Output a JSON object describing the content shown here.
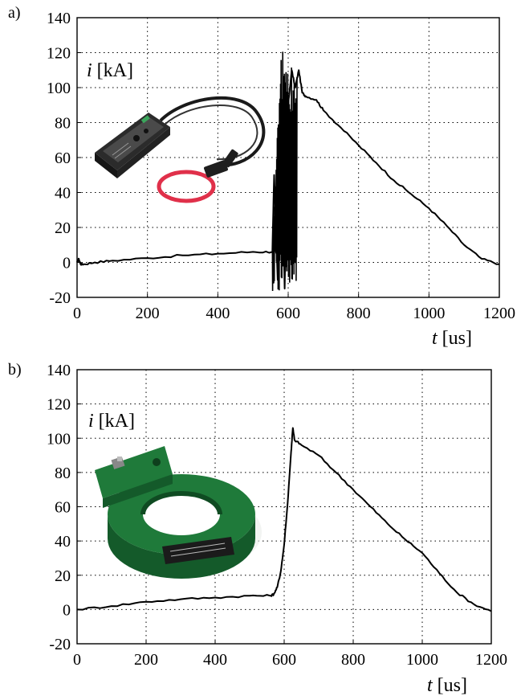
{
  "colors": {
    "trace": "#000000",
    "grid": "#000000",
    "rogowski_cable": "#e0304a",
    "rogowski_box": "#2b2b2b",
    "toroid_green": "#1f7a3a"
  },
  "icons": [
    "rogowski-coil-photo",
    "current-transformer-photo"
  ],
  "chart_data": [
    {
      "type": "line",
      "panel_label": "a)",
      "ylabel_var": "i",
      "ylabel_unit": "[kA]",
      "xlabel_var": "t",
      "xlabel_unit": "[us]",
      "xlim": [
        0,
        1200
      ],
      "ylim": [
        -20,
        140
      ],
      "xticks": [
        0,
        200,
        400,
        600,
        800,
        1000,
        1200
      ],
      "yticks": [
        -20,
        0,
        20,
        40,
        60,
        80,
        100,
        120,
        140
      ],
      "xtick_labels": [
        "0",
        "200",
        "400",
        "600",
        "800",
        "1000",
        "1200"
      ],
      "ytick_labels": [
        "-20",
        "0",
        "20",
        "40",
        "60",
        "80",
        "100",
        "120",
        "140"
      ],
      "grid": true,
      "noise_band": {
        "x_start": 555,
        "x_end": 625,
        "y_min": -17,
        "y_max": 133
      },
      "series": [
        {
          "x": [
            0,
            5,
            10,
            20,
            50,
            100,
            200,
            300,
            400,
            500,
            555,
            560,
            570,
            580,
            590,
            600,
            610,
            620,
            630,
            640,
            650,
            680,
            700,
            750,
            800,
            850,
            900,
            950,
            1000,
            1050,
            1100,
            1150,
            1200
          ],
          "y": [
            0,
            2,
            -1,
            -1,
            0,
            1,
            2.5,
            4,
            5,
            6,
            6,
            50,
            -10,
            70,
            -15,
            90,
            110,
            100,
            110,
            97,
            95,
            93,
            87,
            77,
            67,
            57,
            47,
            39,
            31,
            21,
            10,
            2,
            -1
          ]
        }
      ]
    },
    {
      "type": "line",
      "panel_label": "b)",
      "ylabel_var": "i",
      "ylabel_unit": "[kA]",
      "xlabel_var": "t",
      "xlabel_unit": "[us]",
      "xlim": [
        0,
        1200
      ],
      "ylim": [
        -20,
        140
      ],
      "xticks": [
        0,
        200,
        400,
        600,
        800,
        1000,
        1200
      ],
      "yticks": [
        -20,
        0,
        20,
        40,
        60,
        80,
        100,
        120,
        140
      ],
      "xtick_labels": [
        "0",
        "200",
        "400",
        "600",
        "800",
        "1000",
        "1200"
      ],
      "ytick_labels": [
        "-20",
        "0",
        "20",
        "40",
        "60",
        "80",
        "100",
        "120",
        "140"
      ],
      "grid": true,
      "series": [
        {
          "x": [
            0,
            100,
            200,
            300,
            400,
            500,
            560,
            570,
            580,
            590,
            600,
            610,
            620,
            625,
            630,
            650,
            700,
            750,
            800,
            850,
            900,
            950,
            1000,
            1050,
            1100,
            1150,
            1200
          ],
          "y": [
            0,
            2,
            4.5,
            6,
            7,
            8,
            8,
            9,
            13,
            22,
            38,
            62,
            92,
            106,
            99,
            96,
            90,
            80,
            70,
            60,
            50,
            41,
            33,
            21,
            10,
            3,
            -1
          ]
        }
      ]
    }
  ]
}
